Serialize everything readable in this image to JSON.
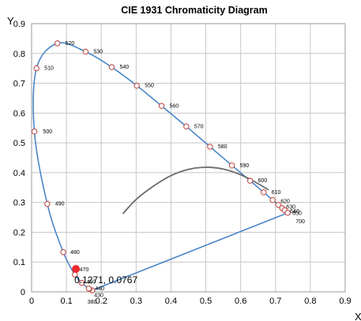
{
  "chart_data": {
    "type": "scatter",
    "title": "CIE 1931 Chromaticity Diagram",
    "xlabel": "X",
    "ylabel": "Y",
    "xlim": [
      0,
      0.9
    ],
    "ylim": [
      0,
      0.9
    ],
    "x_ticks": [
      "0",
      "0.1",
      "0.2",
      "0.3",
      "0.4",
      "0.5",
      "0.6",
      "0.7",
      "0.8",
      "0.9"
    ],
    "y_ticks": [
      "0",
      "0.1",
      "0.2",
      "0.3",
      "0.4",
      "0.5",
      "0.6",
      "0.7",
      "0.8",
      "0.9"
    ],
    "grid": true,
    "colors": {
      "locus": "#4a86c8",
      "planckian": "#6b6b6b",
      "marker_edge": "#c0504d",
      "point": "#e8292e",
      "grid": "#c8c8c8"
    },
    "spectral_locus": [
      {
        "nm": "380",
        "x": 0.174,
        "y": 0.005
      },
      {
        "nm": "430",
        "x": 0.166,
        "y": 0.009
      },
      {
        "nm": "440",
        "x": 0.164,
        "y": 0.011
      },
      {
        "nm": "460",
        "x": 0.144,
        "y": 0.03
      },
      {
        "nm": "470",
        "x": 0.124,
        "y": 0.058
      },
      {
        "nm": "480",
        "x": 0.091,
        "y": 0.133
      },
      {
        "nm": "490",
        "x": 0.045,
        "y": 0.295
      },
      {
        "nm": "500",
        "x": 0.008,
        "y": 0.538
      },
      {
        "nm": "510",
        "x": 0.014,
        "y": 0.75
      },
      {
        "nm": "520",
        "x": 0.074,
        "y": 0.834
      },
      {
        "nm": "530",
        "x": 0.155,
        "y": 0.806
      },
      {
        "nm": "540",
        "x": 0.23,
        "y": 0.754
      },
      {
        "nm": "550",
        "x": 0.302,
        "y": 0.692
      },
      {
        "nm": "560",
        "x": 0.373,
        "y": 0.624
      },
      {
        "nm": "570",
        "x": 0.444,
        "y": 0.555
      },
      {
        "nm": "580",
        "x": 0.512,
        "y": 0.487
      },
      {
        "nm": "590",
        "x": 0.575,
        "y": 0.424
      },
      {
        "nm": "600",
        "x": 0.627,
        "y": 0.373
      },
      {
        "nm": "610",
        "x": 0.666,
        "y": 0.334
      },
      {
        "nm": "620",
        "x": 0.692,
        "y": 0.308
      },
      {
        "nm": "630",
        "x": 0.708,
        "y": 0.292
      },
      {
        "nm": "640",
        "x": 0.719,
        "y": 0.281
      },
      {
        "nm": "650",
        "x": 0.726,
        "y": 0.274
      },
      {
        "nm": "700",
        "x": 0.735,
        "y": 0.265
      }
    ],
    "planckian_locus": [
      {
        "x": 0.262,
        "y": 0.262
      },
      {
        "x": 0.3,
        "y": 0.31
      },
      {
        "x": 0.35,
        "y": 0.355
      },
      {
        "x": 0.4,
        "y": 0.39
      },
      {
        "x": 0.45,
        "y": 0.411
      },
      {
        "x": 0.5,
        "y": 0.418
      },
      {
        "x": 0.55,
        "y": 0.412
      },
      {
        "x": 0.6,
        "y": 0.393
      },
      {
        "x": 0.65,
        "y": 0.363
      },
      {
        "x": 0.68,
        "y": 0.342
      }
    ],
    "highlight_point": {
      "x": 0.1271,
      "y": 0.0767,
      "label": "0.1271, 0.0767"
    }
  }
}
